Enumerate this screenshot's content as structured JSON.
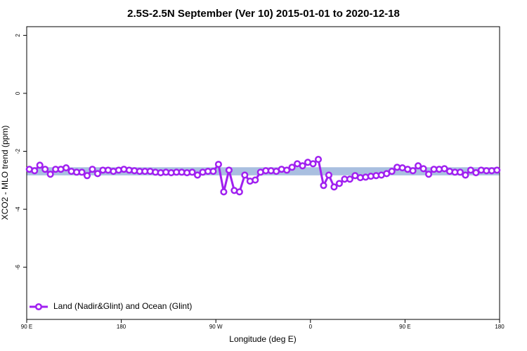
{
  "chart_data": {
    "type": "line",
    "title": "2.5S-2.5N September (Ver 10)   2015-01-01 to 2020-12-18",
    "x_label": "Longitude (deg E)",
    "y_label": "XCO2 - MLO trend (ppm)",
    "xlim": [
      90,
      540
    ],
    "ylim": [
      -7.8,
      2.3
    ],
    "xticks": [
      {
        "value": 90,
        "label": "90 E"
      },
      {
        "value": 180,
        "label": "180"
      },
      {
        "value": 270,
        "label": "90 W"
      },
      {
        "value": 360,
        "label": "0"
      },
      {
        "value": 450,
        "label": "90 E"
      },
      {
        "value": 540,
        "label": "180"
      }
    ],
    "yticks": [
      -6,
      -4,
      -2,
      0,
      2
    ],
    "band_range": [
      -2.83,
      -2.55
    ],
    "band_color": "#a9bfe0",
    "legend": "bottom-left",
    "series": [
      {
        "name": "Land (Nadir&Glint) and Ocean (Glint)",
        "color": "#a020f0",
        "x": [
          92.5,
          97.5,
          102.5,
          107.5,
          112.5,
          117.5,
          122.5,
          127.5,
          132.5,
          137.5,
          142.5,
          147.5,
          152.5,
          157.5,
          162.5,
          167.5,
          172.5,
          177.5,
          182.5,
          187.5,
          192.5,
          197.5,
          202.5,
          207.5,
          212.5,
          217.5,
          222.5,
          227.5,
          232.5,
          237.5,
          242.5,
          247.5,
          252.5,
          257.5,
          262.5,
          267.5,
          272.5,
          277.5,
          282.5,
          287.5,
          292.5,
          297.5,
          302.5,
          307.5,
          312.5,
          317.5,
          322.5,
          327.5,
          332.5,
          337.5,
          342.5,
          347.5,
          352.5,
          357.5,
          362.5,
          367.5,
          372.5,
          377.5,
          382.5,
          387.5,
          392.5,
          397.5,
          402.5,
          407.5,
          412.5,
          417.5,
          422.5,
          427.5,
          432.5,
          437.5,
          442.5,
          447.5,
          452.5,
          457.5,
          462.5,
          467.5,
          472.5,
          477.5,
          482.5,
          487.5,
          492.5,
          497.5,
          502.5,
          507.5,
          512.5,
          517.5,
          522.5,
          527.5,
          532.5,
          537.5
        ],
        "values": [
          -2.62,
          -2.67,
          -2.48,
          -2.62,
          -2.79,
          -2.62,
          -2.62,
          -2.57,
          -2.69,
          -2.72,
          -2.72,
          -2.84,
          -2.62,
          -2.77,
          -2.65,
          -2.65,
          -2.69,
          -2.65,
          -2.62,
          -2.65,
          -2.67,
          -2.69,
          -2.69,
          -2.69,
          -2.72,
          -2.74,
          -2.72,
          -2.74,
          -2.72,
          -2.72,
          -2.74,
          -2.72,
          -2.82,
          -2.72,
          -2.69,
          -2.69,
          -2.45,
          -3.4,
          -2.65,
          -3.35,
          -3.4,
          -2.82,
          -3.03,
          -2.99,
          -2.72,
          -2.67,
          -2.67,
          -2.69,
          -2.62,
          -2.65,
          -2.55,
          -2.43,
          -2.5,
          -2.38,
          -2.43,
          -2.28,
          -3.18,
          -2.82,
          -3.23,
          -3.11,
          -2.96,
          -2.96,
          -2.84,
          -2.91,
          -2.89,
          -2.86,
          -2.84,
          -2.82,
          -2.77,
          -2.69,
          -2.55,
          -2.57,
          -2.62,
          -2.67,
          -2.5,
          -2.6,
          -2.79,
          -2.62,
          -2.62,
          -2.6,
          -2.69,
          -2.72,
          -2.72,
          -2.82,
          -2.65,
          -2.74,
          -2.65,
          -2.67,
          -2.67,
          -2.65
        ]
      }
    ]
  }
}
